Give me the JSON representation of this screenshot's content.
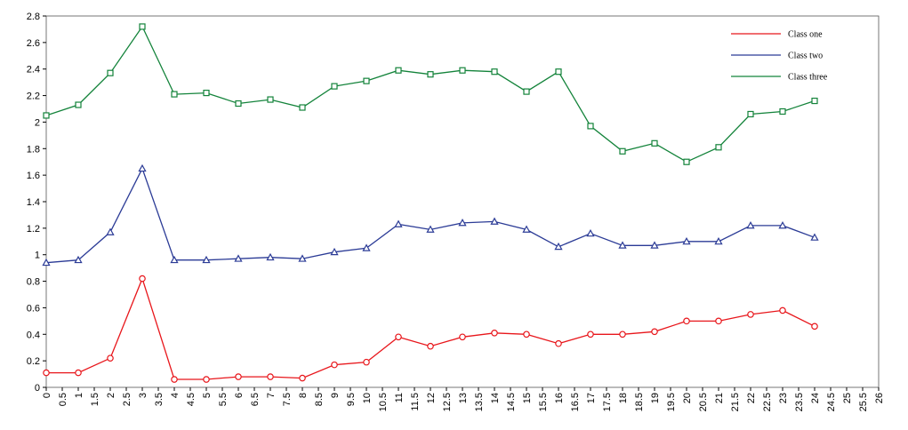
{
  "chart_data": {
    "type": "line",
    "title": "",
    "xlabel": "",
    "ylabel": "",
    "xlim": [
      0,
      26
    ],
    "ylim": [
      0,
      2.8
    ],
    "x_ticks": [
      "0",
      "0.5",
      "1",
      "1.5",
      "2",
      "2.5",
      "3",
      "3.5",
      "4",
      "4.5",
      "5",
      "5.5",
      "6",
      "6.5",
      "7",
      "7.5",
      "8",
      "8.5",
      "9",
      "9.5",
      "10",
      "10.5",
      "11",
      "11.5",
      "12",
      "12.5",
      "13",
      "13.5",
      "14",
      "14.5",
      "15",
      "15.5",
      "16",
      "16.5",
      "17",
      "17.5",
      "18",
      "18.5",
      "19",
      "19.5",
      "20",
      "20.5",
      "21",
      "21.5",
      "22",
      "22.5",
      "23",
      "23.5",
      "24",
      "24.5",
      "25",
      "25.5",
      "26"
    ],
    "y_ticks": [
      "0",
      "0.2",
      "0.4",
      "0.6",
      "0.8",
      "1",
      "1.2",
      "1.4",
      "1.6",
      "1.8",
      "2",
      "2.2",
      "2.4",
      "2.6",
      "2.8"
    ],
    "grid": false,
    "legend_position": "top-right",
    "x": [
      0,
      1,
      2,
      3,
      4,
      5,
      6,
      7,
      8,
      9,
      10,
      11,
      12,
      13,
      14,
      15,
      16,
      17,
      18,
      19,
      20,
      21,
      22,
      23,
      24
    ],
    "series": [
      {
        "name": "Class one",
        "color": "#e8161b",
        "marker": "circle",
        "values": [
          0.11,
          0.11,
          0.22,
          0.82,
          0.06,
          0.06,
          0.08,
          0.08,
          0.07,
          0.17,
          0.19,
          0.38,
          0.31,
          0.38,
          0.41,
          0.4,
          0.33,
          0.4,
          0.4,
          0.42,
          0.5,
          0.5,
          0.55,
          0.58,
          0.46
        ]
      },
      {
        "name": "Class two",
        "color": "#2b3b96",
        "marker": "triangle",
        "values": [
          0.94,
          0.96,
          1.17,
          1.65,
          0.96,
          0.96,
          0.97,
          0.98,
          0.97,
          1.02,
          1.05,
          1.23,
          1.19,
          1.24,
          1.25,
          1.19,
          1.06,
          1.16,
          1.07,
          1.07,
          1.1,
          1.1,
          1.22,
          1.22,
          1.13
        ]
      },
      {
        "name": "Class three",
        "color": "#13833a",
        "marker": "square",
        "values": [
          2.05,
          2.13,
          2.37,
          2.72,
          2.21,
          2.22,
          2.14,
          2.17,
          2.11,
          2.27,
          2.31,
          2.39,
          2.36,
          2.39,
          2.38,
          2.23,
          2.38,
          1.97,
          1.78,
          1.84,
          1.7,
          1.81,
          2.06,
          2.08,
          2.16
        ]
      }
    ]
  }
}
